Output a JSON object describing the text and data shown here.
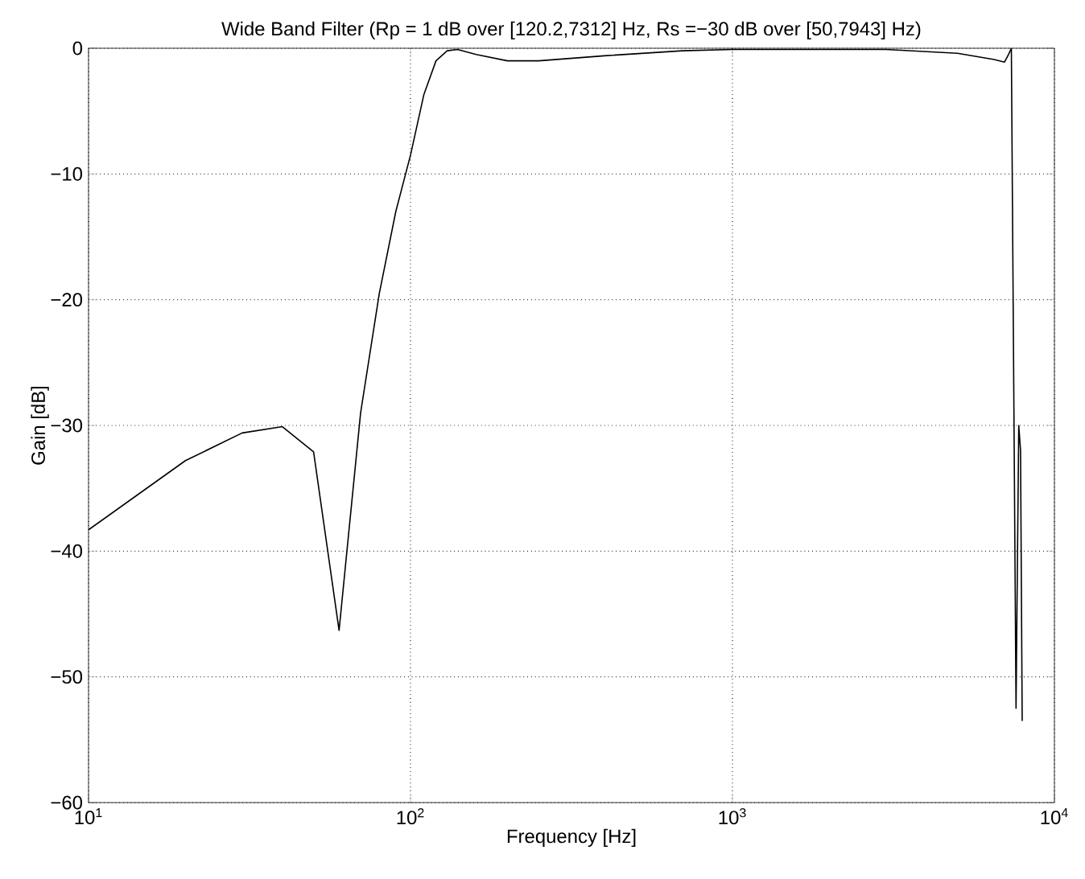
{
  "chart_data": {
    "type": "line",
    "title": "Wide Band Filter (Rp = 1 dB over [120.2,7312] Hz, Rs =−30 dB over [50,7943] Hz)",
    "xlabel": "Frequency [Hz]",
    "ylabel": "Gain [dB]",
    "log": "x",
    "grid": true,
    "xlim": [
      10,
      10000
    ],
    "ylim": [
      -60,
      0
    ],
    "xticks": [
      {
        "value": 10,
        "label": "10$^{1}$"
      },
      {
        "value": 100,
        "label": "10$^{2}$"
      },
      {
        "value": 1000,
        "label": "10$^{3}$"
      },
      {
        "value": 10000,
        "label": "10$^{4}$"
      }
    ],
    "yticks": [
      {
        "value": -60,
        "label": "−60"
      },
      {
        "value": -50,
        "label": "−50"
      },
      {
        "value": -40,
        "label": "−40"
      },
      {
        "value": -30,
        "label": "−30"
      },
      {
        "value": -20,
        "label": "−20"
      },
      {
        "value": -10,
        "label": "−10"
      },
      0
    ],
    "x": [
      10,
      20,
      30,
      40,
      50,
      60,
      70,
      80,
      90,
      100,
      110,
      120,
      130,
      140,
      160,
      200,
      250,
      400,
      700,
      1000,
      3000,
      5000,
      6500,
      7000,
      7200,
      7350,
      7600,
      7750,
      7850,
      7943
    ],
    "values": [
      -38.3,
      -32.8,
      -30.6,
      -30.1,
      -32.1,
      -46.3,
      -29,
      -19.5,
      -13,
      -8.5,
      -3.7,
      -1,
      -0.2,
      -0.1,
      -0.5,
      -1,
      -1,
      -0.6,
      -0.2,
      -0.1,
      -0.1,
      -0.4,
      -0.9,
      -1.1,
      -0.5,
      0,
      -52.5,
      -30,
      -32,
      -53.5
    ],
    "color": "#000000"
  }
}
